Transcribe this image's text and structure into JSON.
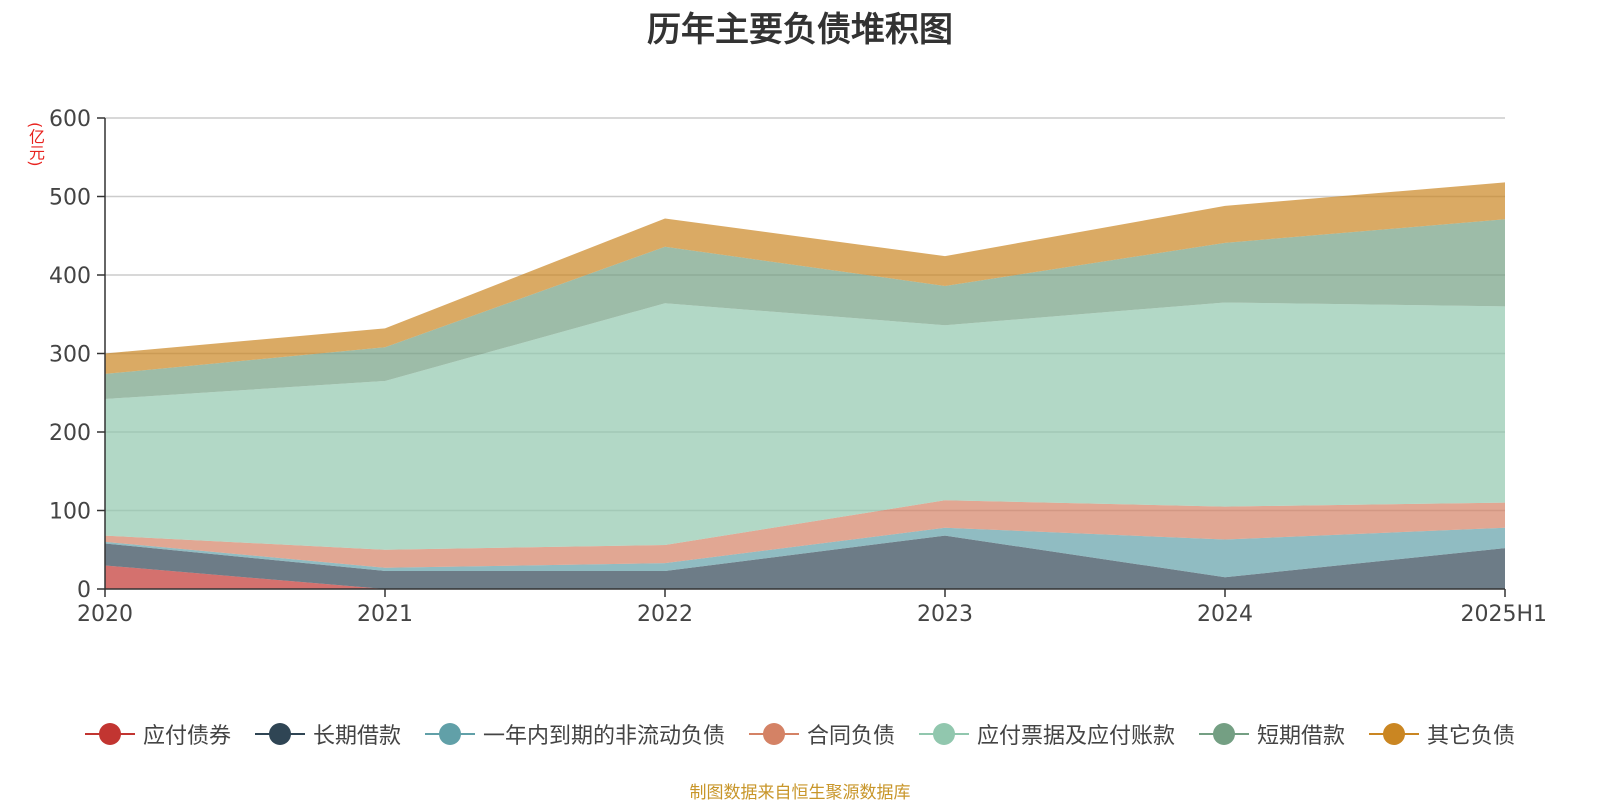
{
  "chart_data": {
    "type": "area",
    "stacked": true,
    "title": "历年主要负债堆积图",
    "y_unit": "(亿元)",
    "categories": [
      "2020",
      "2021",
      "2022",
      "2023",
      "2024",
      "2025H1"
    ],
    "ylim": [
      0,
      600
    ],
    "yticks": [
      0,
      100,
      200,
      300,
      400,
      500,
      600
    ],
    "grid": true,
    "legend_position": "bottom",
    "series": [
      {
        "name": "应付债券",
        "color": "#c23531",
        "values": [
          30,
          0,
          0,
          0,
          0,
          0
        ]
      },
      {
        "name": "长期借款",
        "color": "#2f4554",
        "values": [
          28,
          23,
          23,
          68,
          15,
          52
        ]
      },
      {
        "name": "一年内到期的非流动负债",
        "color": "#61a0a8",
        "values": [
          2,
          4,
          10,
          10,
          48,
          26
        ]
      },
      {
        "name": "合同负债",
        "color": "#d48265",
        "values": [
          8,
          23,
          23,
          35,
          42,
          32
        ]
      },
      {
        "name": "应付票据及应付账款",
        "color": "#91c7ae",
        "values": [
          174,
          215,
          308,
          223,
          260,
          250
        ]
      },
      {
        "name": "短期借款",
        "color": "#749f83",
        "values": [
          32,
          43,
          72,
          50,
          76,
          111
        ]
      },
      {
        "name": "其它负债",
        "color": "#ca8622",
        "values": [
          26,
          24,
          36,
          38,
          47,
          47
        ]
      }
    ]
  },
  "footer": {
    "source": "制图数据来自恒生聚源数据库"
  }
}
